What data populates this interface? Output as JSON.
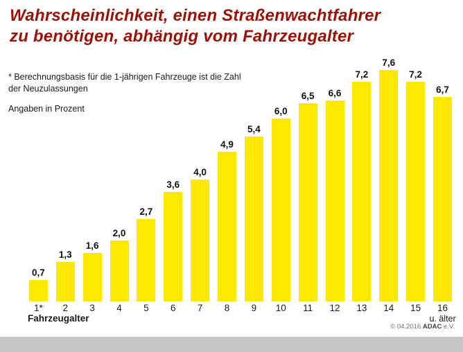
{
  "page": {
    "background": "#ffffff"
  },
  "header": {
    "title_lines": [
      "Wahrscheinlichkeit, einen Straßenwachtfahrer",
      "zu benötigen, abhängig vom Fahrzeugalter"
    ]
  },
  "notes": {
    "footnote_lines": [
      "* Berechnungsbasis für die 1-jährigen Fahrzeuge ist die Zahl",
      "der Neuzulassungen"
    ],
    "unit_note": "Angaben in Prozent"
  },
  "chart_data": {
    "type": "bar",
    "title": "Wahrscheinlichkeit, einen Straßenwachtfahrer zu benötigen, abhängig vom Fahrzeugalter",
    "unit": "Prozent",
    "categories": [
      "1*",
      "2",
      "3",
      "4",
      "5",
      "6",
      "7",
      "8",
      "9",
      "10",
      "11",
      "12",
      "13",
      "14",
      "15",
      "16"
    ],
    "values": [
      0.7,
      1.3,
      1.6,
      2.0,
      2.7,
      3.6,
      4.0,
      4.9,
      5.4,
      6.0,
      6.5,
      6.6,
      7.2,
      7.6,
      7.2,
      6.7
    ],
    "xlabel": "Fahrzeugalter",
    "ylabel": "",
    "ylim": [
      0,
      8
    ],
    "last_category_note": "u. älter",
    "decimal_separator": ",",
    "grid": false,
    "legend": "none",
    "bar_color": "#ffe800"
  },
  "footer": {
    "copyright": "© 04.2016 ",
    "brand": "ADAC",
    "org_suffix": " e.V."
  },
  "colors": {
    "title": "#9e1006",
    "bar": "#ffe800",
    "footer_strip": "#c7c7c7",
    "text": "#1a1a1a"
  }
}
